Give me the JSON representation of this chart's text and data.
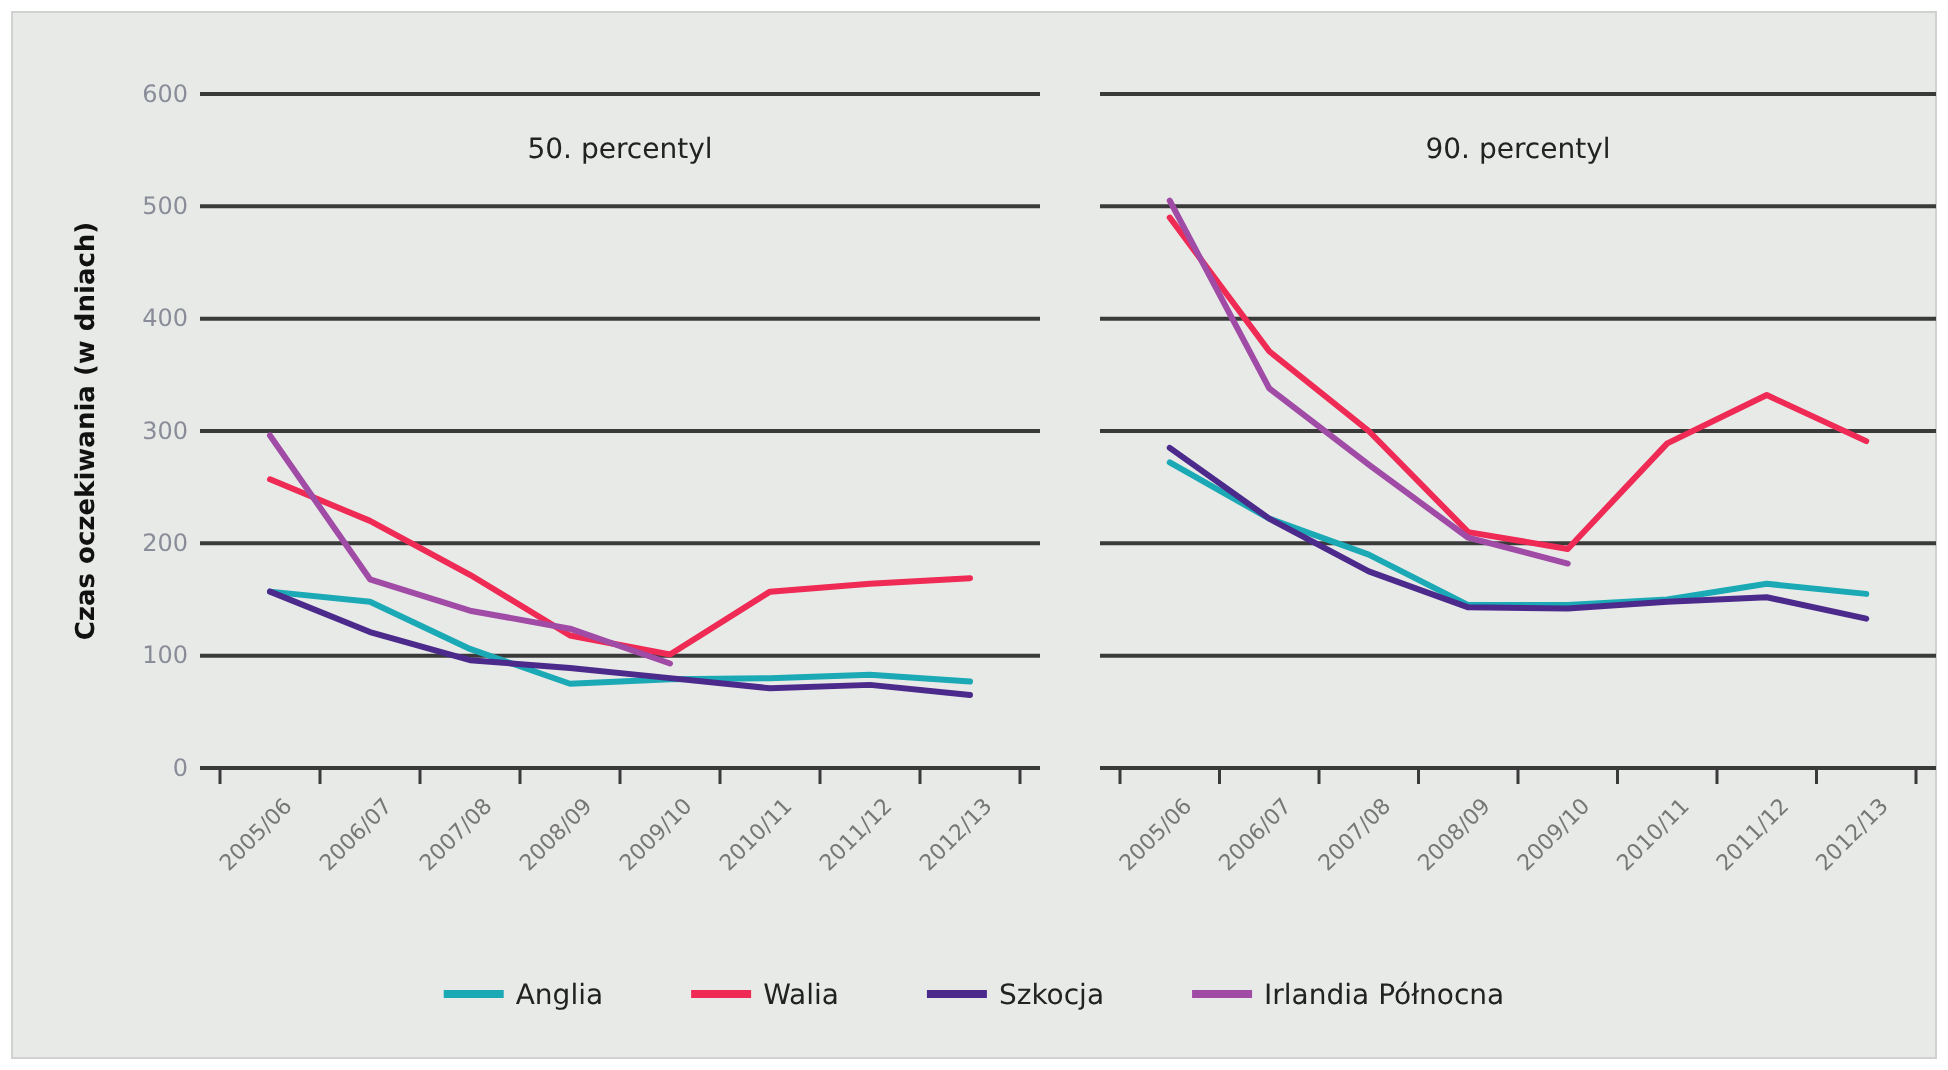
{
  "chart_data": [
    {
      "type": "line",
      "title": "50. percentyl",
      "ylabel": "Czas oczekiwania (w dniach)",
      "categories": [
        "2005/06",
        "2006/07",
        "2007/08",
        "2008/09",
        "2009/10",
        "2010/11",
        "2011/12",
        "2012/13"
      ],
      "ylim": [
        0,
        600
      ],
      "yticks": [
        0,
        100,
        200,
        300,
        400,
        500,
        600
      ],
      "grid": "y",
      "legend": "bottom",
      "line_style": "solid",
      "series": [
        {
          "name": "Anglia",
          "color": "#1aa9b5",
          "values": [
            157,
            148,
            106,
            75,
            79,
            80,
            83,
            77
          ]
        },
        {
          "name": "Walia",
          "color": "#ee2a55",
          "values": [
            257,
            220,
            172,
            118,
            101,
            157,
            164,
            169
          ]
        },
        {
          "name": "Szkocja",
          "color": "#4b2a8c",
          "values": [
            157,
            121,
            96,
            89,
            80,
            71,
            74,
            65
          ]
        },
        {
          "name": "Irlandia Północna",
          "color": "#a04ba6",
          "values": [
            296,
            168,
            140,
            124,
            93,
            null,
            null,
            null
          ]
        }
      ]
    },
    {
      "type": "line",
      "title": "90. percentyl",
      "categories": [
        "2005/06",
        "2006/07",
        "2007/08",
        "2008/09",
        "2009/10",
        "2010/11",
        "2011/12",
        "2012/13"
      ],
      "ylim": [
        0,
        600
      ],
      "yticks": [
        0,
        100,
        200,
        300,
        400,
        500,
        600
      ],
      "tick_labels": "x",
      "grid": "y",
      "line_style": "solid",
      "series": [
        {
          "color": "#1aa9b5",
          "values": [
            272,
            222,
            190,
            145,
            145,
            150,
            164,
            155
          ]
        },
        {
          "color": "#ee2a55",
          "values": [
            490,
            371,
            300,
            210,
            195,
            289,
            332,
            291
          ]
        },
        {
          "color": "#4b2a8c",
          "values": [
            285,
            222,
            175,
            143,
            142,
            148,
            152,
            133
          ]
        },
        {
          "color": "#a04ba6",
          "values": [
            505,
            338,
            270,
            205,
            182,
            null,
            null,
            null
          ]
        }
      ]
    }
  ]
}
